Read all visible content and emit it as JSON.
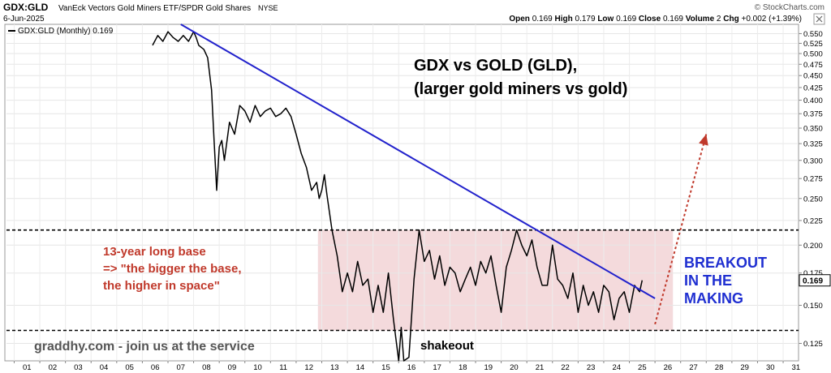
{
  "header": {
    "symbol": "GDX:GLD",
    "description": "VanEck Vectors Gold Miners ETF/SPDR Gold Shares",
    "exchange": "NYSE",
    "date": "6-Jun-2025",
    "brand": "© StockCharts.com",
    "open_label": "Open",
    "open_value": "0.169",
    "high_label": "High",
    "high_value": "0.179",
    "low_label": "Low",
    "low_value": "0.169",
    "close_label": "Close",
    "close_value": "0.169",
    "volume_label": "Volume",
    "volume_value": "2",
    "chg_label": "Chg",
    "chg_value": "+0.002 (+1.39%)"
  },
  "colors": {
    "price_line": "#000000",
    "trendline": "#2222cc",
    "base_fill": "#f2d3d6",
    "base_text": "#c0392b",
    "breakout_text": "#1f2fd1",
    "breakout_arrow": "#c0392b",
    "watermark": "#555555"
  },
  "chart_data": {
    "type": "line",
    "scale": "log",
    "title": "GDX vs GOLD (GLD),",
    "subtitle": "(larger gold miners vs gold)",
    "legend": "GDX:GLD (Monthly) 0.169",
    "last_value_label": "0.169",
    "ylim": [
      0.115,
      0.575
    ],
    "xlim": [
      2000.7,
      2031.6
    ],
    "x_tick_labels": [
      "01",
      "02",
      "03",
      "04",
      "05",
      "06",
      "07",
      "08",
      "09",
      "10",
      "11",
      "12",
      "13",
      "14",
      "15",
      "16",
      "17",
      "18",
      "19",
      "20",
      "21",
      "22",
      "23",
      "24",
      "25",
      "26",
      "27",
      "28",
      "29",
      "30",
      "31"
    ],
    "y_ticks": [
      0.125,
      0.15,
      0.175,
      0.2,
      0.225,
      0.25,
      0.275,
      0.3,
      0.325,
      0.35,
      0.375,
      0.4,
      0.425,
      0.45,
      0.475,
      0.5,
      0.525,
      0.55
    ],
    "y_tick_labels": [
      "0.125",
      "0.150",
      "0.175",
      "0.200",
      "0.225",
      "0.250",
      "0.275",
      "0.300",
      "0.325",
      "0.350",
      "0.375",
      "0.400",
      "0.425",
      "0.450",
      "0.475",
      "0.500",
      "0.525",
      "0.550"
    ],
    "series": [
      {
        "x": [
          2006.4,
          2006.6,
          2006.8,
          2007.0,
          2007.2,
          2007.4,
          2007.6,
          2007.8,
          2008.0,
          2008.1,
          2008.2,
          2008.4,
          2008.55,
          2008.7,
          2008.8,
          2008.9,
          2009.0,
          2009.1,
          2009.2,
          2009.4,
          2009.6,
          2009.8,
          2010.0,
          2010.2,
          2010.4,
          2010.6,
          2010.8,
          2011.0,
          2011.2,
          2011.4,
          2011.6,
          2011.8,
          2012.0,
          2012.2,
          2012.4,
          2012.6,
          2012.8,
          2012.9,
          2013.0,
          2013.1,
          2013.2,
          2013.4,
          2013.6,
          2013.8,
          2014.0,
          2014.2,
          2014.4,
          2014.6,
          2014.8,
          2015.0,
          2015.2,
          2015.4,
          2015.6,
          2015.8,
          2016.0,
          2016.1,
          2016.2,
          2016.4,
          2016.6,
          2016.8,
          2017.0,
          2017.2,
          2017.4,
          2017.6,
          2017.8,
          2018.0,
          2018.2,
          2018.4,
          2018.6,
          2018.8,
          2019.0,
          2019.2,
          2019.4,
          2019.6,
          2019.8,
          2020.0,
          2020.2,
          2020.4,
          2020.6,
          2020.8,
          2021.0,
          2021.2,
          2021.4,
          2021.6,
          2021.8,
          2022.0,
          2022.2,
          2022.4,
          2022.6,
          2022.8,
          2023.0,
          2023.2,
          2023.4,
          2023.6,
          2023.8,
          2024.0,
          2024.2,
          2024.4,
          2024.6,
          2024.8,
          2025.0,
          2025.2,
          2025.4,
          2025.5
        ],
        "values": [
          0.52,
          0.545,
          0.53,
          0.555,
          0.54,
          0.53,
          0.545,
          0.53,
          0.555,
          0.54,
          0.52,
          0.51,
          0.49,
          0.42,
          0.33,
          0.26,
          0.32,
          0.33,
          0.3,
          0.36,
          0.34,
          0.39,
          0.38,
          0.36,
          0.39,
          0.37,
          0.38,
          0.385,
          0.37,
          0.375,
          0.385,
          0.37,
          0.34,
          0.31,
          0.29,
          0.26,
          0.27,
          0.25,
          0.26,
          0.28,
          0.255,
          0.215,
          0.19,
          0.16,
          0.175,
          0.16,
          0.185,
          0.165,
          0.17,
          0.145,
          0.165,
          0.145,
          0.175,
          0.14,
          0.115,
          0.135,
          0.115,
          0.117,
          0.17,
          0.215,
          0.185,
          0.195,
          0.17,
          0.19,
          0.165,
          0.18,
          0.175,
          0.16,
          0.17,
          0.18,
          0.165,
          0.185,
          0.175,
          0.19,
          0.165,
          0.145,
          0.18,
          0.195,
          0.215,
          0.2,
          0.19,
          0.205,
          0.18,
          0.165,
          0.165,
          0.2,
          0.17,
          0.165,
          0.155,
          0.175,
          0.145,
          0.165,
          0.15,
          0.16,
          0.145,
          0.165,
          0.16,
          0.14,
          0.155,
          0.16,
          0.145,
          0.165,
          0.16,
          0.169
        ]
      }
    ],
    "trendline": {
      "x": [
        2007.5,
        2026.0
      ],
      "values": [
        0.575,
        0.155
      ]
    },
    "reference_lines": [
      0.215,
      0.133
    ],
    "base_zone": {
      "x": [
        2012.85,
        2026.7
      ],
      "y": [
        0.133,
        0.215
      ]
    },
    "breakout_arrow": {
      "x": [
        2026.0,
        2028.0
      ],
      "values": [
        0.137,
        0.34
      ]
    },
    "annotations": {
      "base_line1": "13-year long base",
      "base_line2": "=> \"the bigger the base,",
      "base_line3": "the higher in space\"",
      "shakeout": "shakeout",
      "breakout_line1": "BREAKOUT",
      "breakout_line2": "IN THE",
      "breakout_line3": "MAKING",
      "watermark": "graddhy.com - join us at the service"
    }
  }
}
